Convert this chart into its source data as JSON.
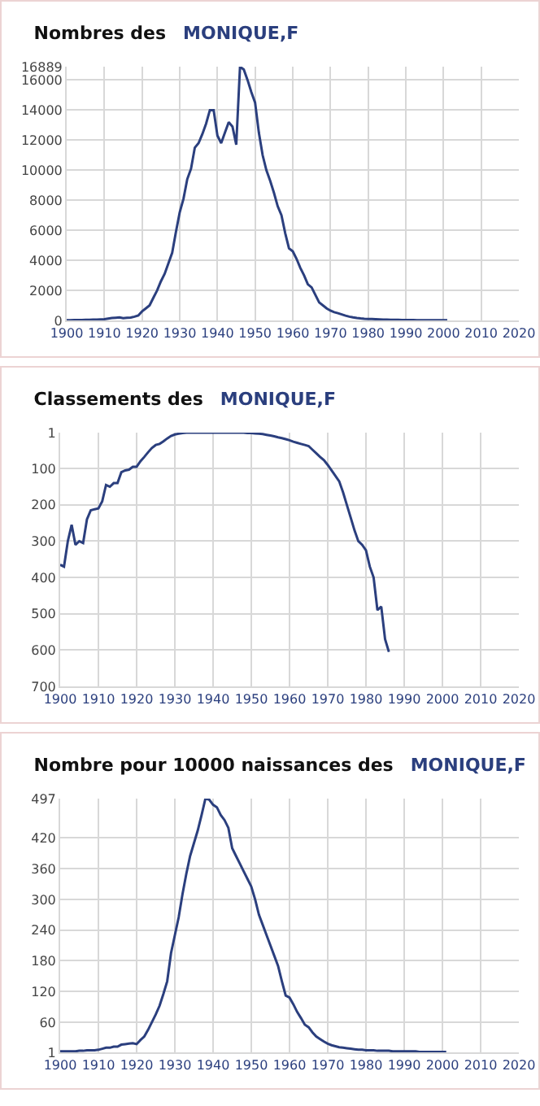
{
  "chart_data": [
    {
      "type": "line",
      "title": "Nombres des",
      "xlim": [
        1900,
        2020
      ],
      "xticks": [
        1900,
        1910,
        1920,
        1930,
        1940,
        1950,
        1960,
        1970,
        1980,
        1990,
        2000,
        2010,
        2020
      ],
      "ylim": [
        0,
        16889
      ],
      "yticks": [
        0,
        2000,
        4000,
        6000,
        8000,
        10000,
        12000,
        14000,
        16000,
        16889
      ],
      "grid": true,
      "legend": false,
      "marker": "none",
      "line_style": "solid",
      "series": [
        {
          "name": "MONIQUE,F",
          "color": "#2b3f7e",
          "x": [
            1900,
            1901,
            1902,
            1903,
            1904,
            1905,
            1906,
            1907,
            1908,
            1909,
            1910,
            1911,
            1912,
            1913,
            1914,
            1915,
            1916,
            1917,
            1918,
            1919,
            1920,
            1921,
            1922,
            1923,
            1924,
            1925,
            1926,
            1927,
            1928,
            1929,
            1930,
            1931,
            1932,
            1933,
            1934,
            1935,
            1936,
            1937,
            1938,
            1939,
            1940,
            1941,
            1942,
            1943,
            1944,
            1945,
            1946,
            1947,
            1948,
            1949,
            1950,
            1951,
            1952,
            1953,
            1954,
            1955,
            1956,
            1957,
            1958,
            1959,
            1960,
            1961,
            1962,
            1963,
            1964,
            1965,
            1966,
            1967,
            1968,
            1969,
            1970,
            1971,
            1972,
            1973,
            1974,
            1975,
            1976,
            1977,
            1978,
            1979,
            1980,
            1981,
            1982,
            1983,
            1984,
            1985,
            1986,
            1987,
            1988,
            1989,
            1990,
            1991,
            1992,
            1993,
            1994,
            1995,
            1996,
            1997,
            1998,
            1999,
            2000,
            2001
          ],
          "values": [
            20,
            20,
            25,
            25,
            30,
            35,
            40,
            50,
            60,
            70,
            80,
            120,
            160,
            180,
            200,
            150,
            170,
            190,
            250,
            330,
            600,
            800,
            1000,
            1500,
            2000,
            2600,
            3100,
            3800,
            4500,
            5900,
            7200,
            8100,
            9400,
            10100,
            11500,
            11800,
            12400,
            13100,
            14000,
            14000,
            12300,
            11800,
            12500,
            13200,
            12900,
            11700,
            16889,
            16700,
            16000,
            15200,
            14500,
            12500,
            11000,
            10000,
            9300,
            8500,
            7600,
            7000,
            5800,
            4800,
            4600,
            4100,
            3500,
            3000,
            2400,
            2200,
            1700,
            1200,
            1000,
            800,
            650,
            550,
            480,
            400,
            320,
            250,
            200,
            160,
            130,
            110,
            100,
            90,
            80,
            70,
            60,
            50,
            45,
            40,
            35,
            30,
            28,
            25,
            22,
            20,
            18,
            16,
            15,
            14,
            13,
            12,
            11,
            10
          ]
        }
      ]
    },
    {
      "type": "line",
      "title": "Classements des",
      "xlim": [
        1900,
        2020
      ],
      "xticks": [
        1900,
        1910,
        1920,
        1930,
        1940,
        1950,
        1960,
        1970,
        1980,
        1990,
        2000,
        2010,
        2020
      ],
      "ylim": [
        700,
        1
      ],
      "yticks": [
        1,
        100,
        200,
        300,
        400,
        500,
        600,
        700
      ],
      "grid": true,
      "legend": false,
      "marker": "none",
      "line_style": "solid",
      "series": [
        {
          "name": "MONIQUE,F",
          "color": "#2b3f7e",
          "x": [
            1900,
            1901,
            1902,
            1903,
            1904,
            1905,
            1906,
            1907,
            1908,
            1909,
            1910,
            1911,
            1912,
            1913,
            1914,
            1915,
            1916,
            1917,
            1918,
            1919,
            1920,
            1921,
            1922,
            1923,
            1924,
            1925,
            1926,
            1927,
            1928,
            1929,
            1930,
            1931,
            1932,
            1933,
            1934,
            1935,
            1936,
            1937,
            1938,
            1939,
            1940,
            1941,
            1942,
            1943,
            1944,
            1945,
            1946,
            1947,
            1948,
            1949,
            1950,
            1951,
            1952,
            1953,
            1954,
            1955,
            1956,
            1957,
            1958,
            1959,
            1960,
            1961,
            1962,
            1963,
            1964,
            1965,
            1966,
            1967,
            1968,
            1969,
            1970,
            1971,
            1972,
            1973,
            1974,
            1975,
            1976,
            1977,
            1978,
            1979,
            1980,
            1981,
            1982,
            1983,
            1984,
            1985,
            1986
          ],
          "values": [
            365,
            370,
            300,
            255,
            310,
            300,
            305,
            240,
            215,
            212,
            210,
            190,
            145,
            150,
            140,
            140,
            110,
            105,
            103,
            95,
            95,
            80,
            68,
            55,
            43,
            35,
            32,
            25,
            17,
            10,
            6,
            4,
            2,
            1,
            1,
            1,
            1,
            1,
            1,
            1,
            1,
            1,
            1,
            1,
            1,
            1,
            1,
            1,
            1,
            2,
            2,
            3,
            4,
            5,
            7,
            9,
            11,
            14,
            16,
            19,
            22,
            26,
            29,
            32,
            35,
            38,
            48,
            58,
            68,
            77,
            90,
            105,
            120,
            135,
            165,
            200,
            235,
            270,
            300,
            310,
            325,
            370,
            400,
            490,
            480,
            570,
            605
          ]
        }
      ]
    },
    {
      "type": "line",
      "title": "Nombre pour 10000 naissances des",
      "xlim": [
        1900,
        2020
      ],
      "xticks": [
        1900,
        1910,
        1920,
        1930,
        1940,
        1950,
        1960,
        1970,
        1980,
        1990,
        2000,
        2010,
        2020
      ],
      "ylim": [
        1,
        497
      ],
      "yticks": [
        1,
        60,
        120,
        180,
        240,
        300,
        360,
        420,
        497
      ],
      "grid": true,
      "legend": false,
      "marker": "none",
      "line_style": "solid",
      "series": [
        {
          "name": "MONIQUE,F",
          "color": "#2b3f7e",
          "x": [
            1900,
            1901,
            1902,
            1903,
            1904,
            1905,
            1906,
            1907,
            1908,
            1909,
            1910,
            1911,
            1912,
            1913,
            1914,
            1915,
            1916,
            1917,
            1918,
            1919,
            1920,
            1921,
            1922,
            1923,
            1924,
            1925,
            1926,
            1927,
            1928,
            1929,
            1930,
            1931,
            1932,
            1933,
            1934,
            1935,
            1936,
            1937,
            1938,
            1939,
            1940,
            1941,
            1942,
            1943,
            1944,
            1945,
            1946,
            1947,
            1948,
            1949,
            1950,
            1951,
            1952,
            1953,
            1954,
            1955,
            1956,
            1957,
            1958,
            1959,
            1960,
            1961,
            1962,
            1963,
            1964,
            1965,
            1966,
            1967,
            1968,
            1969,
            1970,
            1971,
            1972,
            1973,
            1974,
            1975,
            1976,
            1977,
            1978,
            1979,
            1980,
            1981,
            1982,
            1983,
            1984,
            1985,
            1986,
            1987,
            1988,
            1989,
            1990,
            1991,
            1992,
            1993,
            1994,
            1995,
            1996,
            1997,
            1998,
            1999,
            2000,
            2001
          ],
          "values": [
            3,
            3,
            3,
            3,
            3,
            4,
            4,
            5,
            5,
            5,
            6,
            8,
            10,
            10,
            12,
            12,
            16,
            17,
            18,
            19,
            17,
            25,
            32,
            45,
            60,
            75,
            92,
            115,
            140,
            195,
            230,
            265,
            310,
            350,
            385,
            410,
            435,
            465,
            497,
            495,
            485,
            480,
            465,
            455,
            440,
            400,
            385,
            370,
            355,
            340,
            325,
            300,
            270,
            250,
            230,
            210,
            190,
            170,
            140,
            112,
            108,
            95,
            80,
            68,
            55,
            50,
            40,
            32,
            27,
            22,
            18,
            15,
            13,
            11,
            10,
            9,
            8,
            7,
            6,
            6,
            5,
            5,
            5,
            4,
            4,
            4,
            4,
            3,
            3,
            3,
            3,
            3,
            3,
            3,
            2,
            2,
            2,
            2,
            2,
            2,
            2,
            2
          ]
        }
      ]
    }
  ]
}
